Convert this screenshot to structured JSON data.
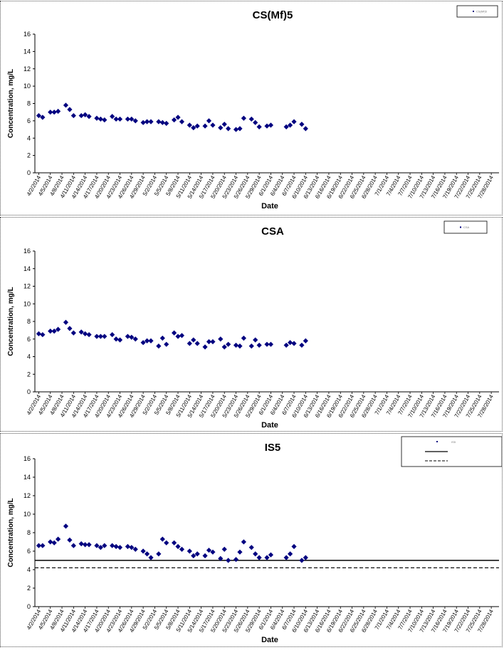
{
  "charts": [
    {
      "type": "scatter",
      "title": "CS(Mf)5",
      "ylabel": "Concentration, mg/L",
      "xlabel": "Date",
      "ylim": [
        0,
        16
      ],
      "yticks": [
        0,
        2,
        4,
        6,
        8,
        10,
        12,
        14,
        16
      ],
      "date_ticks": [
        "4/2/2014",
        "4/5/2014",
        "4/8/2014",
        "4/11/2014",
        "4/14/2014",
        "4/17/2014",
        "4/20/2014",
        "4/23/2014",
        "4/26/2014",
        "4/29/2014",
        "5/2/2014",
        "5/5/2014",
        "5/8/2014",
        "5/11/2014",
        "5/14/2014",
        "5/17/2014",
        "5/20/2014",
        "5/23/2014",
        "5/26/2014",
        "5/29/2014",
        "6/1/2014",
        "6/4/2014",
        "6/7/2014",
        "6/10/2014",
        "6/13/2014",
        "6/16/2014",
        "6/19/2014",
        "6/22/2014",
        "6/25/2014",
        "6/28/2014",
        "7/1/2014",
        "7/4/2014",
        "7/7/2014",
        "7/10/2014",
        "7/13/2014",
        "7/16/2014",
        "7/19/2014",
        "7/22/2014",
        "7/25/2014",
        "7/28/2014"
      ],
      "legend": [
        "CS(Mf)5"
      ],
      "marker_color": "#000080",
      "points": [
        {
          "x": "4/2/2014",
          "y": 6.6
        },
        {
          "x": "4/3/2014",
          "y": 6.4
        },
        {
          "x": "4/5/2014",
          "y": 7.0
        },
        {
          "x": "4/6/2014",
          "y": 7.0
        },
        {
          "x": "4/7/2014",
          "y": 7.1
        },
        {
          "x": "4/9/2014",
          "y": 7.8
        },
        {
          "x": "4/10/2014",
          "y": 7.3
        },
        {
          "x": "4/11/2014",
          "y": 6.6
        },
        {
          "x": "4/13/2014",
          "y": 6.6
        },
        {
          "x": "4/14/2014",
          "y": 6.7
        },
        {
          "x": "4/15/2014",
          "y": 6.5
        },
        {
          "x": "4/17/2014",
          "y": 6.3
        },
        {
          "x": "4/18/2014",
          "y": 6.2
        },
        {
          "x": "4/19/2014",
          "y": 6.1
        },
        {
          "x": "4/21/2014",
          "y": 6.5
        },
        {
          "x": "4/22/2014",
          "y": 6.2
        },
        {
          "x": "4/23/2014",
          "y": 6.2
        },
        {
          "x": "4/25/2014",
          "y": 6.2
        },
        {
          "x": "4/26/2014",
          "y": 6.2
        },
        {
          "x": "4/27/2014",
          "y": 6.0
        },
        {
          "x": "4/29/2014",
          "y": 5.8
        },
        {
          "x": "4/30/2014",
          "y": 5.9
        },
        {
          "x": "5/1/2014",
          "y": 5.9
        },
        {
          "x": "5/3/2014",
          "y": 5.9
        },
        {
          "x": "5/4/2014",
          "y": 5.8
        },
        {
          "x": "5/5/2014",
          "y": 5.7
        },
        {
          "x": "5/7/2014",
          "y": 6.1
        },
        {
          "x": "5/8/2014",
          "y": 6.4
        },
        {
          "x": "5/9/2014",
          "y": 5.9
        },
        {
          "x": "5/11/2014",
          "y": 5.5
        },
        {
          "x": "5/12/2014",
          "y": 5.2
        },
        {
          "x": "5/13/2014",
          "y": 5.4
        },
        {
          "x": "5/15/2014",
          "y": 5.4
        },
        {
          "x": "5/16/2014",
          "y": 6.0
        },
        {
          "x": "5/17/2014",
          "y": 5.5
        },
        {
          "x": "5/19/2014",
          "y": 5.2
        },
        {
          "x": "5/20/2014",
          "y": 5.6
        },
        {
          "x": "5/21/2014",
          "y": 5.1
        },
        {
          "x": "5/23/2014",
          "y": 5.0
        },
        {
          "x": "5/24/2014",
          "y": 5.1
        },
        {
          "x": "5/25/2014",
          "y": 6.3
        },
        {
          "x": "5/27/2014",
          "y": 6.2
        },
        {
          "x": "5/28/2014",
          "y": 5.8
        },
        {
          "x": "5/29/2014",
          "y": 5.3
        },
        {
          "x": "5/31/2014",
          "y": 5.4
        },
        {
          "x": "6/1/2014",
          "y": 5.5
        },
        {
          "x": "6/5/2014",
          "y": 5.3
        },
        {
          "x": "6/6/2014",
          "y": 5.5
        },
        {
          "x": "6/7/2014",
          "y": 5.9
        },
        {
          "x": "6/9/2014",
          "y": 5.6
        },
        {
          "x": "6/10/2014",
          "y": 5.1
        }
      ]
    },
    {
      "type": "scatter",
      "title": "CSA",
      "ylabel": "Concentration, mg/L",
      "xlabel": "Date",
      "ylim": [
        0,
        16
      ],
      "yticks": [
        0,
        2,
        4,
        6,
        8,
        10,
        12,
        14,
        16
      ],
      "date_ticks": [
        "4/2/2014",
        "4/5/2014",
        "4/8/2014",
        "4/11/2014",
        "4/14/2014",
        "4/17/2014",
        "4/20/2014",
        "4/23/2014",
        "4/26/2014",
        "4/29/2014",
        "5/2/2014",
        "5/5/2014",
        "5/8/2014",
        "5/11/2014",
        "5/14/2014",
        "5/17/2014",
        "5/20/2014",
        "5/23/2014",
        "5/26/2014",
        "5/29/2014",
        "6/1/2014",
        "6/4/2014",
        "6/7/2014",
        "6/10/2014",
        "6/13/2014",
        "6/16/2014",
        "6/19/2014",
        "6/22/2014",
        "6/25/2014",
        "6/28/2014",
        "7/1/2014",
        "7/4/2014",
        "7/7/2014",
        "7/10/2014",
        "7/13/2014",
        "7/16/2014",
        "7/19/2014",
        "7/22/2014",
        "7/25/2014",
        "7/28/2014"
      ],
      "legend": [
        "CSA"
      ],
      "marker_color": "#000080",
      "points": [
        {
          "x": "4/2/2014",
          "y": 6.6
        },
        {
          "x": "4/3/2014",
          "y": 6.5
        },
        {
          "x": "4/5/2014",
          "y": 6.9
        },
        {
          "x": "4/6/2014",
          "y": 6.9
        },
        {
          "x": "4/7/2014",
          "y": 7.1
        },
        {
          "x": "4/9/2014",
          "y": 7.9
        },
        {
          "x": "4/10/2014",
          "y": 7.2
        },
        {
          "x": "4/11/2014",
          "y": 6.7
        },
        {
          "x": "4/13/2014",
          "y": 6.8
        },
        {
          "x": "4/14/2014",
          "y": 6.6
        },
        {
          "x": "4/15/2014",
          "y": 6.5
        },
        {
          "x": "4/17/2014",
          "y": 6.3
        },
        {
          "x": "4/18/2014",
          "y": 6.3
        },
        {
          "x": "4/19/2014",
          "y": 6.3
        },
        {
          "x": "4/21/2014",
          "y": 6.5
        },
        {
          "x": "4/22/2014",
          "y": 6.0
        },
        {
          "x": "4/23/2014",
          "y": 5.9
        },
        {
          "x": "4/25/2014",
          "y": 6.3
        },
        {
          "x": "4/26/2014",
          "y": 6.2
        },
        {
          "x": "4/27/2014",
          "y": 6.0
        },
        {
          "x": "4/29/2014",
          "y": 5.6
        },
        {
          "x": "4/30/2014",
          "y": 5.8
        },
        {
          "x": "5/1/2014",
          "y": 5.8
        },
        {
          "x": "5/3/2014",
          "y": 5.2
        },
        {
          "x": "5/4/2014",
          "y": 6.1
        },
        {
          "x": "5/5/2014",
          "y": 5.4
        },
        {
          "x": "5/7/2014",
          "y": 6.7
        },
        {
          "x": "5/8/2014",
          "y": 6.3
        },
        {
          "x": "5/9/2014",
          "y": 6.4
        },
        {
          "x": "5/11/2014",
          "y": 5.5
        },
        {
          "x": "5/12/2014",
          "y": 5.9
        },
        {
          "x": "5/13/2014",
          "y": 5.5
        },
        {
          "x": "5/15/2014",
          "y": 5.1
        },
        {
          "x": "5/16/2014",
          "y": 5.7
        },
        {
          "x": "5/17/2014",
          "y": 5.7
        },
        {
          "x": "5/19/2014",
          "y": 6.0
        },
        {
          "x": "5/20/2014",
          "y": 5.1
        },
        {
          "x": "5/21/2014",
          "y": 5.4
        },
        {
          "x": "5/23/2014",
          "y": 5.3
        },
        {
          "x": "5/24/2014",
          "y": 5.2
        },
        {
          "x": "5/25/2014",
          "y": 6.1
        },
        {
          "x": "5/27/2014",
          "y": 5.2
        },
        {
          "x": "5/28/2014",
          "y": 5.9
        },
        {
          "x": "5/29/2014",
          "y": 5.3
        },
        {
          "x": "5/31/2014",
          "y": 5.4
        },
        {
          "x": "6/1/2014",
          "y": 5.4
        },
        {
          "x": "6/5/2014",
          "y": 5.3
        },
        {
          "x": "6/6/2014",
          "y": 5.6
        },
        {
          "x": "6/7/2014",
          "y": 5.5
        },
        {
          "x": "6/9/2014",
          "y": 5.3
        },
        {
          "x": "6/10/2014",
          "y": 5.8
        }
      ]
    },
    {
      "type": "scatter",
      "title": "IS5",
      "ylabel": "Concentration, mg/L",
      "xlabel": "Date",
      "ylim": [
        0,
        16
      ],
      "yticks": [
        0,
        2,
        4,
        6,
        8,
        10,
        12,
        14,
        16
      ],
      "date_ticks": [
        "4/2/2014",
        "4/5/2014",
        "4/8/2014",
        "4/11/2014",
        "4/14/2014",
        "4/17/2014",
        "4/20/2014",
        "4/23/2014",
        "4/26/2014",
        "4/29/2014",
        "5/2/2014",
        "5/5/2014",
        "5/8/2014",
        "5/11/2014",
        "5/14/2014",
        "5/17/2014",
        "5/20/2014",
        "5/23/2014",
        "5/26/2014",
        "5/29/2014",
        "6/1/2014",
        "6/4/2014",
        "6/7/2014",
        "6/10/2014",
        "6/13/2014",
        "6/16/2014",
        "6/19/2014",
        "6/22/2014",
        "6/25/2014",
        "6/28/2014",
        "7/1/2014",
        "7/4/2014",
        "7/7/2014",
        "7/10/2014",
        "7/13/2014",
        "7/16/2014",
        "7/19/2014",
        "7/22/2014",
        "7/25/2014",
        "7/28/2014"
      ],
      "legend": [
        "IS5",
        "",
        ""
      ],
      "marker_color": "#000080",
      "ref_lines": [
        {
          "y": 5.0,
          "style": "solid"
        },
        {
          "y": 4.2,
          "style": "dashed"
        }
      ],
      "points": [
        {
          "x": "4/2/2014",
          "y": 6.6
        },
        {
          "x": "4/3/2014",
          "y": 6.6
        },
        {
          "x": "4/5/2014",
          "y": 7.0
        },
        {
          "x": "4/6/2014",
          "y": 6.9
        },
        {
          "x": "4/7/2014",
          "y": 7.3
        },
        {
          "x": "4/9/2014",
          "y": 8.7
        },
        {
          "x": "4/10/2014",
          "y": 7.2
        },
        {
          "x": "4/11/2014",
          "y": 6.6
        },
        {
          "x": "4/13/2014",
          "y": 6.8
        },
        {
          "x": "4/14/2014",
          "y": 6.7
        },
        {
          "x": "4/15/2014",
          "y": 6.7
        },
        {
          "x": "4/17/2014",
          "y": 6.6
        },
        {
          "x": "4/18/2014",
          "y": 6.4
        },
        {
          "x": "4/19/2014",
          "y": 6.6
        },
        {
          "x": "4/21/2014",
          "y": 6.6
        },
        {
          "x": "4/22/2014",
          "y": 6.5
        },
        {
          "x": "4/23/2014",
          "y": 6.4
        },
        {
          "x": "4/25/2014",
          "y": 6.5
        },
        {
          "x": "4/26/2014",
          "y": 6.4
        },
        {
          "x": "4/27/2014",
          "y": 6.2
        },
        {
          "x": "4/29/2014",
          "y": 6.0
        },
        {
          "x": "4/30/2014",
          "y": 5.7
        },
        {
          "x": "5/1/2014",
          "y": 5.3
        },
        {
          "x": "5/3/2014",
          "y": 5.7
        },
        {
          "x": "5/4/2014",
          "y": 7.3
        },
        {
          "x": "5/5/2014",
          "y": 6.9
        },
        {
          "x": "5/7/2014",
          "y": 6.9
        },
        {
          "x": "5/8/2014",
          "y": 6.5
        },
        {
          "x": "5/9/2014",
          "y": 6.2
        },
        {
          "x": "5/11/2014",
          "y": 6.0
        },
        {
          "x": "5/12/2014",
          "y": 5.5
        },
        {
          "x": "5/13/2014",
          "y": 5.7
        },
        {
          "x": "5/15/2014",
          "y": 5.5
        },
        {
          "x": "5/16/2014",
          "y": 6.1
        },
        {
          "x": "5/17/2014",
          "y": 5.9
        },
        {
          "x": "5/19/2014",
          "y": 5.2
        },
        {
          "x": "5/20/2014",
          "y": 6.2
        },
        {
          "x": "5/21/2014",
          "y": 5.0
        },
        {
          "x": "5/23/2014",
          "y": 5.1
        },
        {
          "x": "5/24/2014",
          "y": 5.9
        },
        {
          "x": "5/25/2014",
          "y": 7.0
        },
        {
          "x": "5/27/2014",
          "y": 6.4
        },
        {
          "x": "5/28/2014",
          "y": 5.7
        },
        {
          "x": "5/29/2014",
          "y": 5.3
        },
        {
          "x": "5/31/2014",
          "y": 5.3
        },
        {
          "x": "6/1/2014",
          "y": 5.6
        },
        {
          "x": "6/5/2014",
          "y": 5.3
        },
        {
          "x": "6/6/2014",
          "y": 5.7
        },
        {
          "x": "6/7/2014",
          "y": 6.5
        },
        {
          "x": "6/9/2014",
          "y": 5.0
        },
        {
          "x": "6/10/2014",
          "y": 5.3
        }
      ]
    }
  ]
}
